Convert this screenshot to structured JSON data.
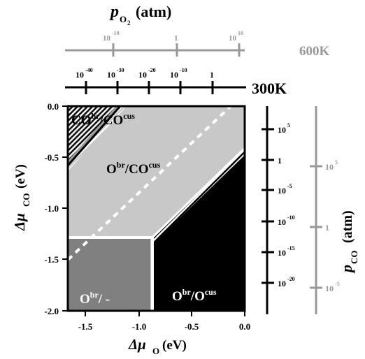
{
  "top_axis": {
    "title_p": "p",
    "title_sub": "O",
    "title_subsub": "2",
    "title_unit": "(atm)",
    "scale_600": {
      "label": "600K",
      "color": "#999999",
      "ticks": [
        {
          "base": "10",
          "exp": "-10",
          "pos": -10
        },
        {
          "base": "1",
          "exp": "",
          "pos": 0
        },
        {
          "base": "10",
          "exp": "10",
          "pos": 10
        }
      ]
    },
    "scale_300": {
      "label": "300K",
      "color": "#000000",
      "ticks": [
        {
          "base": "10",
          "exp": "-40",
          "pos": -40
        },
        {
          "base": "10",
          "exp": "-30",
          "pos": -30
        },
        {
          "base": "10",
          "exp": "-20",
          "pos": -20
        },
        {
          "base": "10",
          "exp": "-10",
          "pos": -10
        },
        {
          "base": "1",
          "exp": "",
          "pos": 0
        }
      ]
    }
  },
  "right_axis": {
    "title_p": "p",
    "title_sub": "CO",
    "title_unit": "(atm)",
    "scale_300": {
      "color": "#000000",
      "ticks": [
        {
          "base": "10",
          "exp": "5",
          "pos": 5
        },
        {
          "base": "1",
          "exp": "",
          "pos": 0
        },
        {
          "base": "10",
          "exp": "-5",
          "pos": -5
        },
        {
          "base": "10",
          "exp": "-10",
          "pos": -10
        },
        {
          "base": "10",
          "exp": "-15",
          "pos": -15
        },
        {
          "base": "10",
          "exp": "-20",
          "pos": -20
        }
      ]
    },
    "scale_600": {
      "color": "#999999",
      "ticks": [
        {
          "base": "10",
          "exp": "5",
          "pos": 5
        },
        {
          "base": "1",
          "exp": "",
          "pos": 0
        },
        {
          "base": "10",
          "exp": "-5",
          "pos": -5
        }
      ]
    }
  },
  "x_axis": {
    "label_mu": "Δμ",
    "label_sub": "O",
    "label_unit": "(eV)",
    "ticks": [
      {
        "label": "-1.5",
        "value": -1.5
      },
      {
        "label": "-1.0",
        "value": -1.0
      },
      {
        "label": "-0.5",
        "value": -0.5
      },
      {
        "label": "0.0",
        "value": 0.0
      }
    ],
    "range": [
      -1.65,
      0.0
    ]
  },
  "y_axis": {
    "label_mu": "Δμ",
    "label_sub": "CO",
    "label_unit": "(eV)",
    "ticks": [
      {
        "label": "0.0",
        "value": 0.0
      },
      {
        "label": "-0.5",
        "value": -0.5
      },
      {
        "label": "-1.0",
        "value": -1.0
      },
      {
        "label": "-1.5",
        "value": -1.5
      },
      {
        "label": "-2.0",
        "value": -2.0
      }
    ],
    "range": [
      -2.0,
      0.0
    ]
  },
  "regions": {
    "co_co": {
      "a": "CO",
      "a_sup": "br",
      "sep": "/",
      "b": "CO",
      "b_sup": "cus",
      "color": "#9a9a9a"
    },
    "o_co": {
      "a": "O",
      "a_sup": "br",
      "sep": "/",
      "b": "CO",
      "b_sup": "cus",
      "color": "#c8c8c8"
    },
    "o_none": {
      "a": "O",
      "a_sup": "br",
      "sep": "/ -",
      "color": "#808080"
    },
    "o_o": {
      "a": "O",
      "a_sup": "br",
      "sep": "/",
      "b": "O",
      "b_sup": "cus",
      "color": "#000000"
    }
  }
}
